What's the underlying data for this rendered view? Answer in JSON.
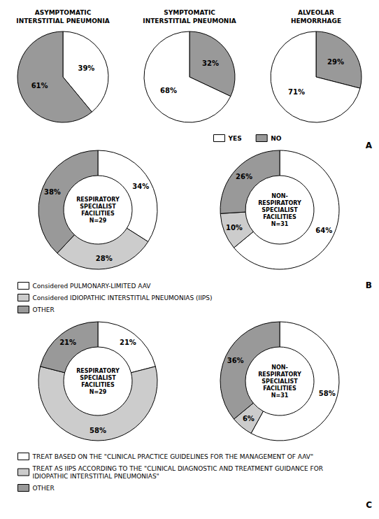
{
  "chart_data": [
    {
      "type": "pie",
      "title": "ASYMPTOMATIC\nINTERSTITIAL PNEUMONIA",
      "categories": [
        "YES",
        "NO"
      ],
      "values": [
        39,
        61
      ],
      "value_labels": [
        "39%",
        "61%"
      ],
      "colors": [
        "#ffffff",
        "#999999"
      ],
      "data_labels": true
    },
    {
      "type": "pie",
      "title": "SYMPTOMATIC\nINTERSTITIAL PNEUMONIA",
      "categories": [
        "NO",
        "YES"
      ],
      "values": [
        32,
        68
      ],
      "value_labels": [
        "32%",
        "68%"
      ],
      "colors": [
        "#999999",
        "#ffffff"
      ],
      "data_labels": true
    },
    {
      "type": "pie",
      "title": "ALVEOLAR\nHEMORRHAGE",
      "categories": [
        "NO",
        "YES"
      ],
      "values": [
        29,
        71
      ],
      "value_labels": [
        "29%",
        "71%"
      ],
      "colors": [
        "#999999",
        "#ffffff"
      ],
      "data_labels": true,
      "legend": "bottom",
      "annotations": [
        "A"
      ]
    },
    {
      "type": "donut",
      "title": "RESPIRATORY\nSPECIALIST\nFACILITIES\nN=29",
      "categories": [
        "Considered PULMONARY-LIMITED AAV",
        "Considered IDIOPATHIC INTERSTITIAL PNEUMONIAS (IIPS)",
        "OTHER"
      ],
      "values": [
        34,
        28,
        38
      ],
      "value_labels": [
        "34%",
        "28%",
        "38%"
      ],
      "colors": [
        "#ffffff",
        "#cccccc",
        "#999999"
      ],
      "data_labels": true
    },
    {
      "type": "donut",
      "title": "NON-\nRESPIRATORY\nSPECIALIST\nFACILITIES\nN=31",
      "categories": [
        "Considered PULMONARY-LIMITED AAV",
        "Considered IDIOPATHIC INTERSTITIAL PNEUMONIAS (IIPS)",
        "OTHER"
      ],
      "values": [
        64,
        10,
        26
      ],
      "value_labels": [
        "64%",
        "10%",
        "26%"
      ],
      "colors": [
        "#ffffff",
        "#cccccc",
        "#999999"
      ],
      "data_labels": true,
      "legend": "bottom",
      "annotations": [
        "B"
      ]
    },
    {
      "type": "donut",
      "title": "RESPIRATORY\nSPECIALIST\nFACILITIES\nN=29",
      "categories": [
        "TREAT BASED ON THE \"CLINICAL PRACTICE GUIDELINES FOR THE MANAGEMENT OF AAV\"",
        "TREAT AS IIPS ACCORDING TO THE \"CLINICAL DIAGNOSTIC AND TREATMENT GUIDANCE FOR IDIOPATHIC INTERSTITIAL PNEUMONIAS\"",
        "OTHER"
      ],
      "values": [
        21,
        58,
        21
      ],
      "value_labels": [
        "21%",
        "58%",
        "21%"
      ],
      "colors": [
        "#ffffff",
        "#cccccc",
        "#999999"
      ],
      "data_labels": true
    },
    {
      "type": "donut",
      "title": "NON-\nRESPIRATORY\nSPECIALIST\nFACILITIES\nN=31",
      "categories": [
        "TREAT BASED ON THE \"CLINICAL PRACTICE GUIDELINES FOR THE MANAGEMENT OF AAV\"",
        "TREAT AS IIPS ACCORDING TO THE \"CLINICAL DIAGNOSTIC AND TREATMENT GUIDANCE FOR IDIOPATHIC INTERSTITIAL PNEUMONIAS\"",
        "OTHER"
      ],
      "values": [
        58,
        6,
        36
      ],
      "value_labels": [
        "58%",
        "6%",
        "36%"
      ],
      "colors": [
        "#ffffff",
        "#cccccc",
        "#999999"
      ],
      "data_labels": true,
      "legend": "bottom",
      "annotations": [
        "C"
      ]
    }
  ]
}
